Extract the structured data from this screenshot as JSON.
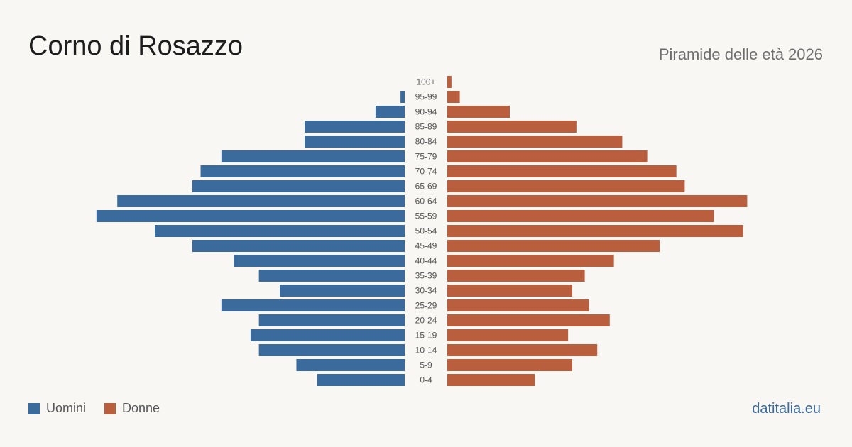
{
  "header": {
    "title": "Corno di Rosazzo",
    "subtitle": "Piramide delle età 2026"
  },
  "legend": {
    "men_label": "Uomini",
    "women_label": "Donne"
  },
  "footer": {
    "source": "datitalia.eu"
  },
  "colors": {
    "men": "#3b6a9c",
    "women": "#b95f3e",
    "background": "#f9f7f3"
  },
  "chart_data": {
    "type": "bar",
    "orientation": "horizontal-population-pyramid",
    "categories": [
      "100+",
      "95-99",
      "90-94",
      "85-89",
      "80-84",
      "75-79",
      "70-74",
      "65-69",
      "60-64",
      "55-59",
      "50-54",
      "45-49",
      "40-44",
      "35-39",
      "30-34",
      "25-29",
      "20-24",
      "15-19",
      "10-14",
      "5-9",
      "0-4"
    ],
    "series": [
      {
        "name": "Uomini",
        "values": [
          0,
          1,
          7,
          24,
          24,
          44,
          49,
          51,
          69,
          74,
          60,
          51,
          41,
          35,
          30,
          44,
          35,
          37,
          35,
          26,
          21
        ]
      },
      {
        "name": "Donne",
        "values": [
          1,
          3,
          15,
          31,
          42,
          48,
          55,
          57,
          72,
          64,
          71,
          51,
          40,
          33,
          30,
          34,
          39,
          29,
          36,
          30,
          21
        ]
      }
    ],
    "title": "Corno di Rosazzo",
    "subtitle": "Piramide delle età 2026",
    "xlim": [
      0,
      75
    ],
    "grid": false,
    "legend_position": "bottom-left"
  }
}
